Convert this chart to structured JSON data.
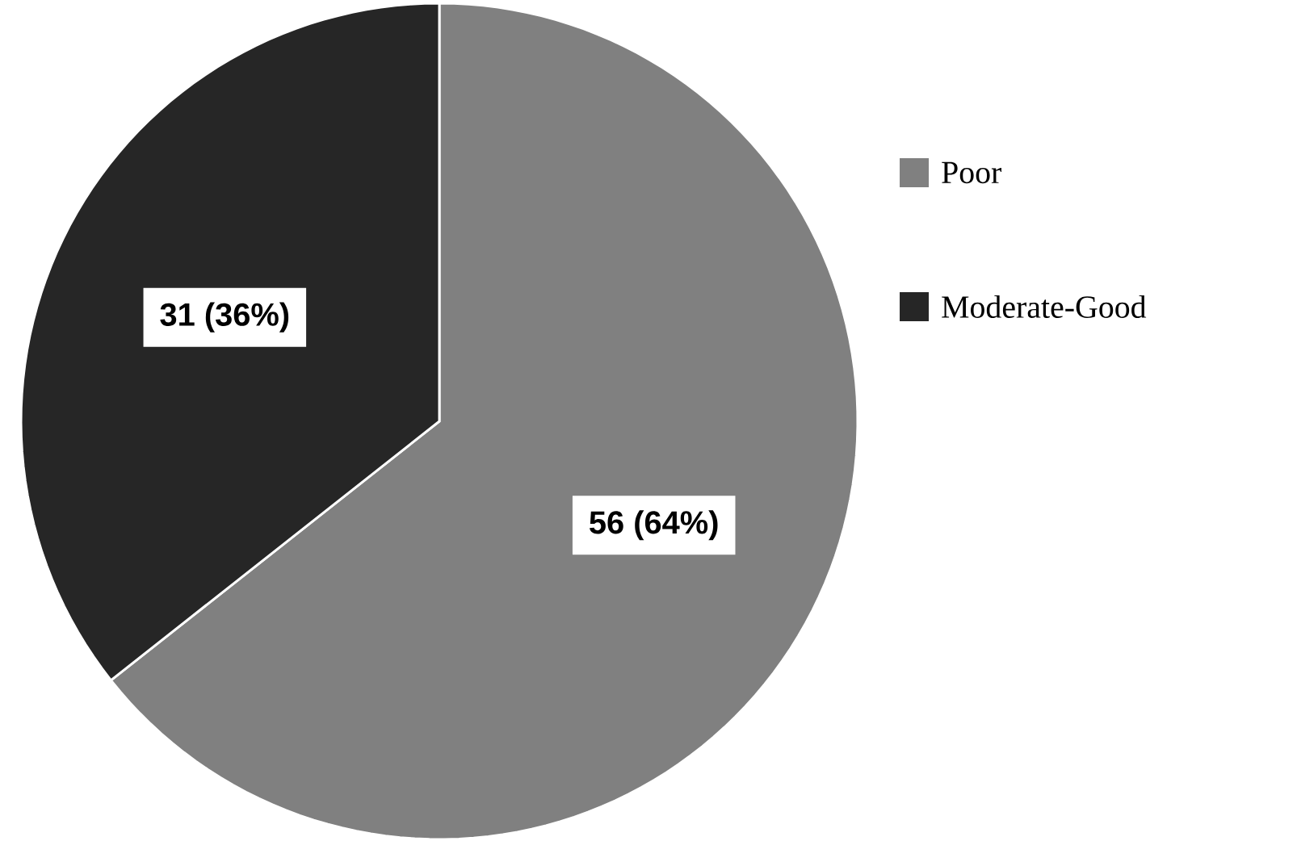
{
  "chart_data": {
    "type": "pie",
    "categories": [
      "Poor",
      "Moderate-Good"
    ],
    "values": [
      56,
      31
    ],
    "value_labels": [
      "56 (64%)",
      "31 (36%)"
    ],
    "colors": [
      "#808080",
      "#262626"
    ],
    "legend": "right"
  }
}
